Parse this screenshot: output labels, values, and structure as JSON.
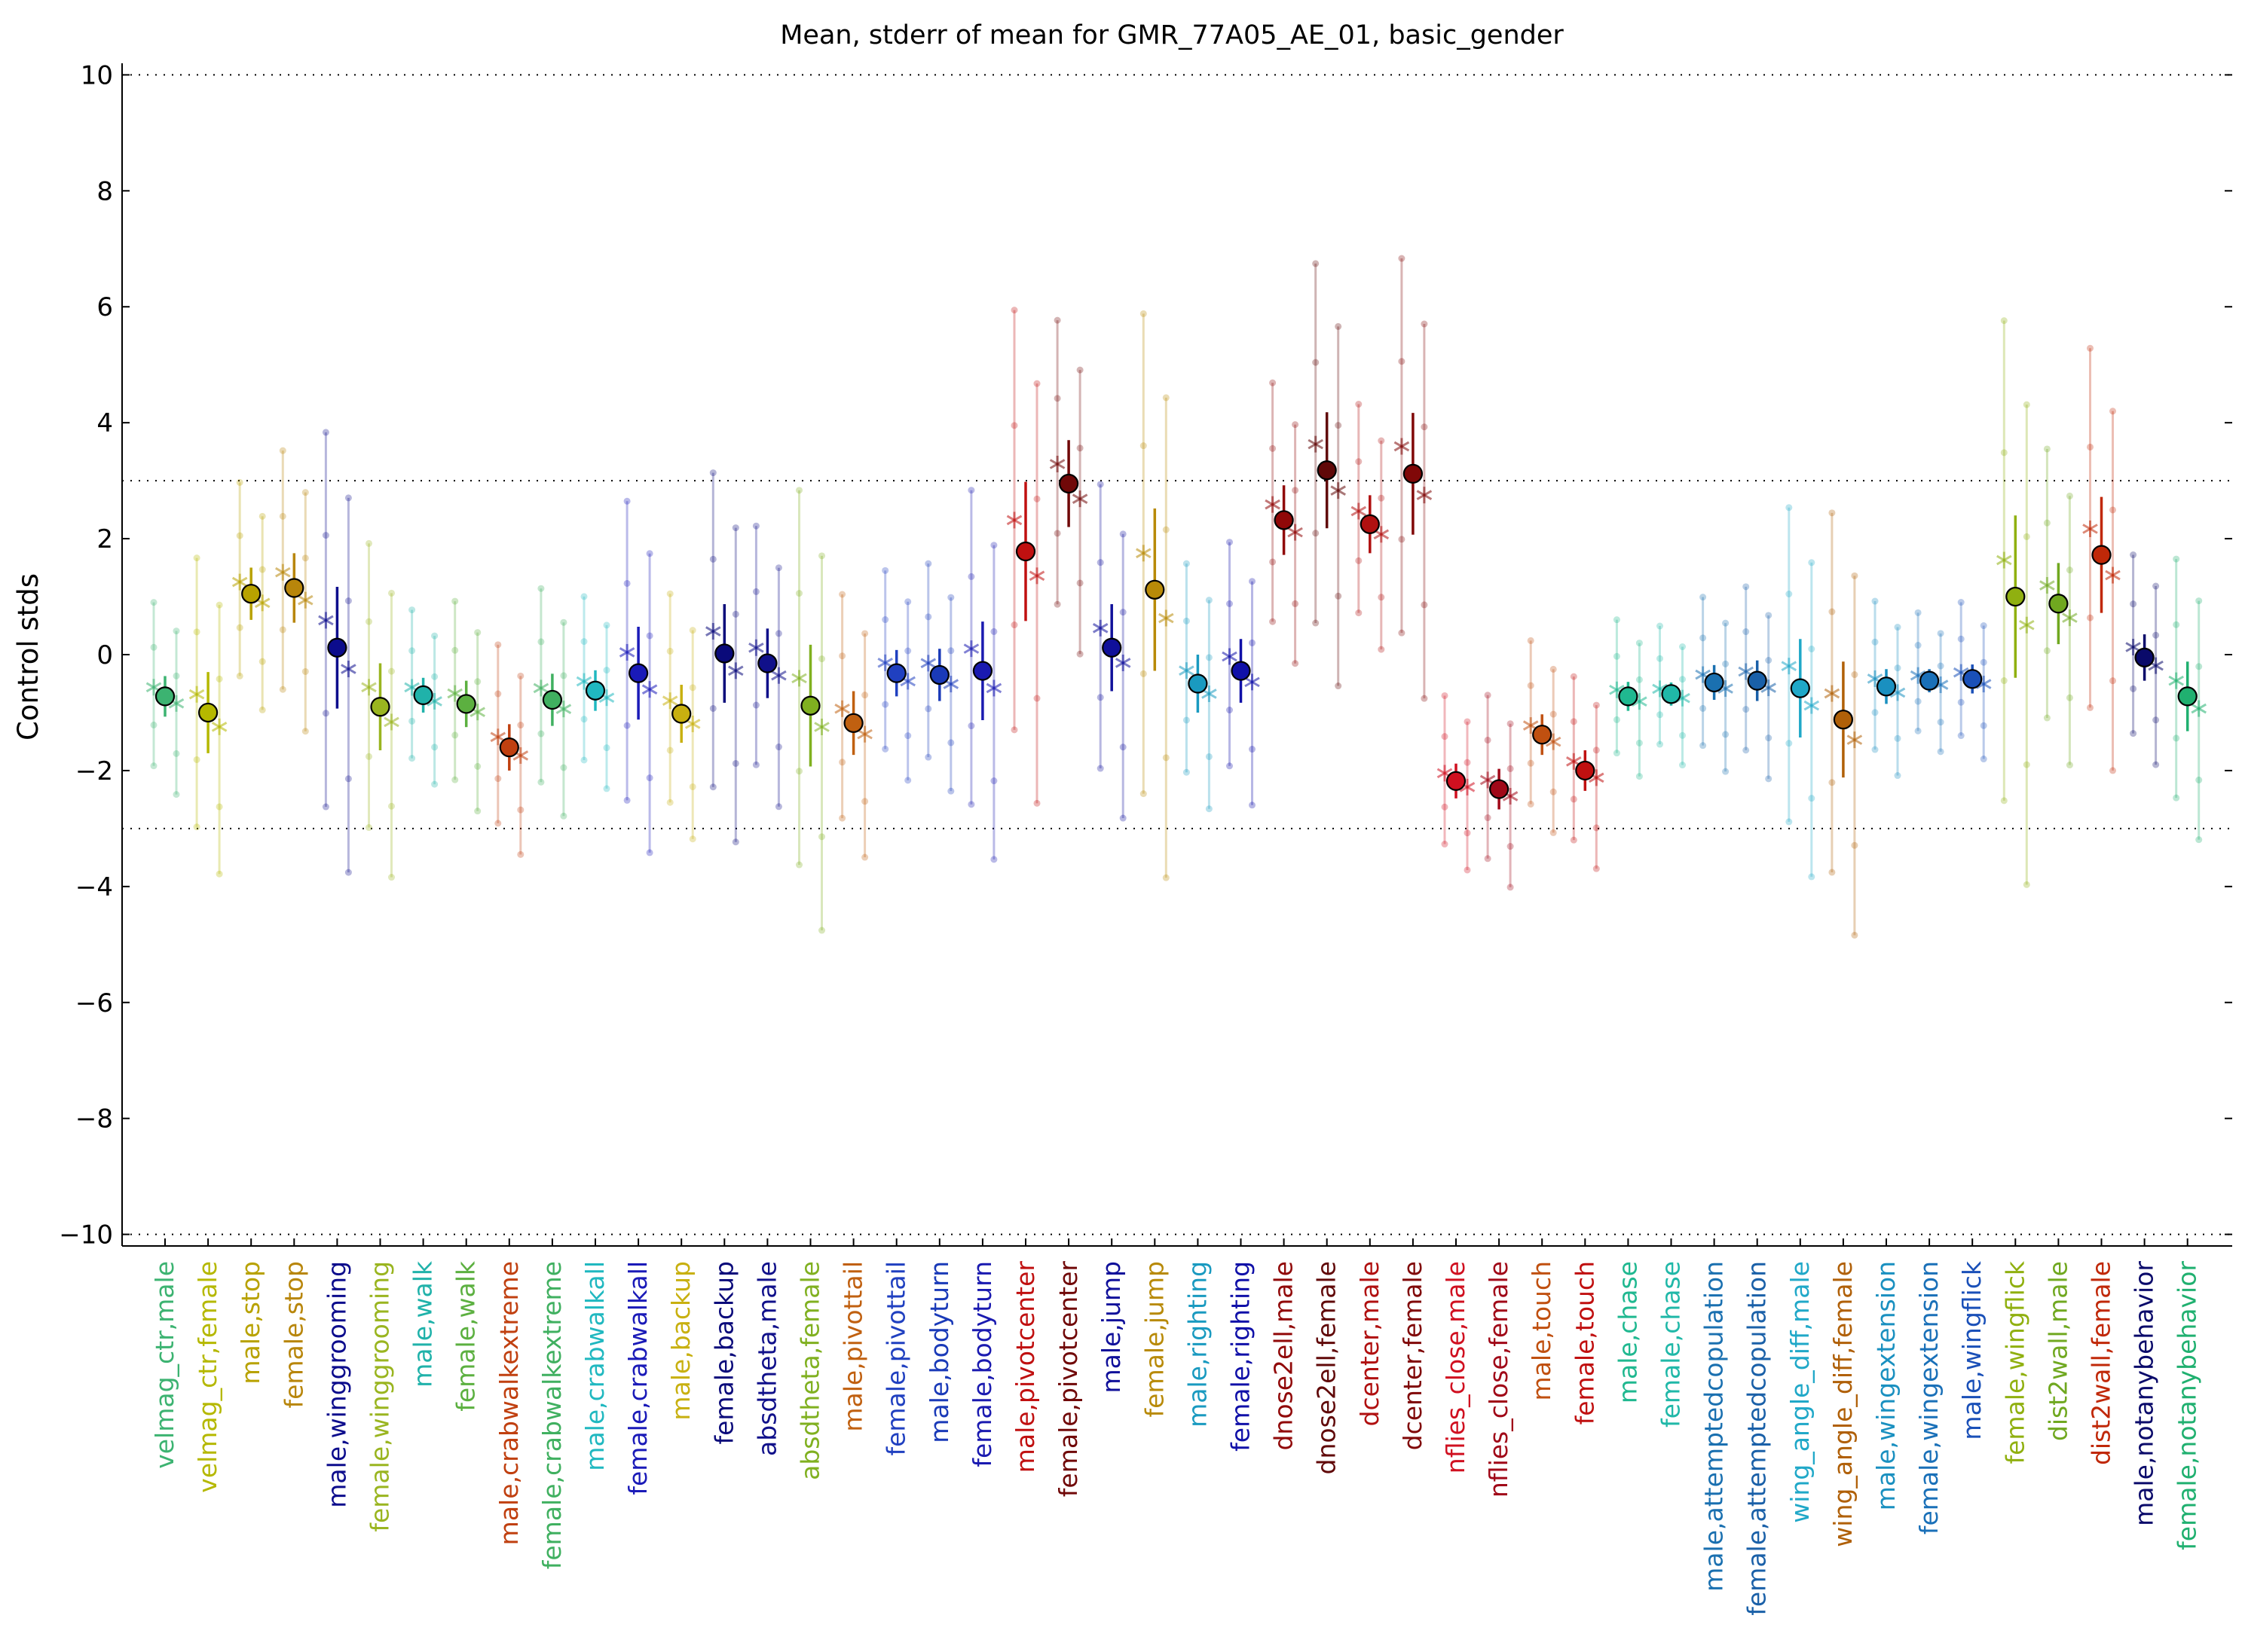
{
  "chart_data": {
    "type": "scatter",
    "title": "Mean, stderr of mean for GMR_77A05_AE_01, basic_gender",
    "xlabel": "",
    "ylabel": "Control stds",
    "ylim": [
      -10.2,
      10.2
    ],
    "yticks": [
      10,
      8,
      6,
      4,
      2,
      0,
      -2,
      -4,
      -6,
      -8,
      -10
    ],
    "ytick_labels": [
      "10",
      "8",
      "6",
      "4",
      "2",
      "0",
      "−2",
      "−4",
      "−6",
      "−8",
      "−10"
    ],
    "reference_lines": [
      10,
      3,
      -3,
      -10
    ],
    "grid": false,
    "legend": "none",
    "categories": [
      "velmag_ctr,male",
      "velmag_ctr,female",
      "male,stop",
      "female,stop",
      "male,winggrooming",
      "female,winggrooming",
      "male,walk",
      "female,walk",
      "male,crabwalkextreme",
      "female,crabwalkextreme",
      "male,crabwalkall",
      "female,crabwalkall",
      "male,backup",
      "female,backup",
      "absdtheta,male",
      "absdtheta,female",
      "male,pivottail",
      "female,pivottail",
      "male,bodyturn",
      "female,bodyturn",
      "male,pivotcenter",
      "female,pivotcenter",
      "male,jump",
      "female,jump",
      "male,righting",
      "female,righting",
      "dnose2ell,male",
      "dnose2ell,female",
      "dcenter,male",
      "dcenter,female",
      "nflies_close,male",
      "nflies_close,female",
      "male,touch",
      "female,touch",
      "male,chase",
      "female,chase",
      "male,attemptedcopulation",
      "female,attemptedcopulation",
      "wing_angle_diff,male",
      "wing_angle_diff,female",
      "male,wingextension",
      "female,wingextension",
      "male,wingflick",
      "female,wingflick",
      "dist2wall,male",
      "dist2wall,female",
      "male,notanybehavior",
      "female,notanybehavior"
    ],
    "colors": [
      "#3cb371",
      "#b5b800",
      "#b8a200",
      "#b8860b",
      "#0c0c8c",
      "#9ab520",
      "#20b2aa",
      "#5cb040",
      "#c04010",
      "#40b060",
      "#20b8c0",
      "#1a1ab8",
      "#c8b010",
      "#0a0a7a",
      "#10108a",
      "#80b020",
      "#c06010",
      "#2040c0",
      "#1a3ab8",
      "#1a1ab0",
      "#c01010",
      "#700808",
      "#10109a",
      "#b88a08",
      "#1a9ac0",
      "#1010a8",
      "#900808",
      "#600808",
      "#b01010",
      "#800808",
      "#d01020",
      "#a00818",
      "#c05010",
      "#c01010",
      "#20b890",
      "#20b8a8",
      "#1a70b0",
      "#1a60a8",
      "#20a8c8",
      "#b06008",
      "#1a90c0",
      "#1a70b8",
      "#1a50b8",
      "#90b010",
      "#70a820",
      "#c02808",
      "#0a0a6a",
      "#20b070"
    ],
    "series": [
      {
        "name": "mean",
        "values": [
          -0.72,
          -1.0,
          1.05,
          1.15,
          0.12,
          -0.9,
          -0.7,
          -0.85,
          -1.6,
          -0.78,
          -0.62,
          -0.32,
          -1.02,
          0.02,
          -0.15,
          -0.88,
          -1.18,
          -0.32,
          -0.35,
          -0.28,
          1.78,
          2.95,
          0.12,
          1.12,
          -0.5,
          -0.28,
          2.32,
          3.18,
          2.25,
          3.12,
          -2.18,
          -2.32,
          -1.38,
          -2.0,
          -0.72,
          -0.68,
          -0.48,
          -0.45,
          -0.58,
          -1.12,
          -0.55,
          -0.45,
          -0.42,
          1.0,
          0.88,
          1.72,
          -0.05,
          -0.72
        ]
      },
      {
        "name": "stderr",
        "values": [
          0.35,
          0.7,
          0.45,
          0.6,
          1.05,
          0.75,
          0.3,
          0.4,
          0.4,
          0.45,
          0.35,
          0.8,
          0.5,
          0.85,
          0.6,
          1.05,
          0.55,
          0.4,
          0.45,
          0.85,
          1.2,
          0.75,
          0.75,
          1.4,
          0.5,
          0.55,
          0.6,
          1.0,
          0.5,
          1.05,
          0.3,
          0.35,
          0.35,
          0.35,
          0.25,
          0.2,
          0.3,
          0.35,
          0.85,
          1.0,
          0.3,
          0.2,
          0.25,
          1.4,
          0.7,
          1.0,
          0.4,
          0.6
        ]
      }
    ]
  }
}
